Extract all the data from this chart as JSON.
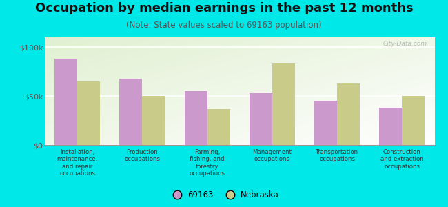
{
  "title": "Occupation by median earnings in the past 12 months",
  "subtitle": "(Note: State values scaled to 69163 population)",
  "background_color": "#00e8e8",
  "categories": [
    "Installation,\nmaintenance,\nand repair\noccupations",
    "Production\noccupations",
    "Farming,\nfishing, and\nforestry\noccupations",
    "Management\noccupations",
    "Transportation\noccupations",
    "Construction\nand extraction\noccupations"
  ],
  "values_69163": [
    88000,
    68000,
    55000,
    53000,
    45000,
    38000
  ],
  "values_nebraska": [
    65000,
    50000,
    37000,
    83000,
    63000,
    50000
  ],
  "color_69163": "#cc99cc",
  "color_nebraska": "#c8cc88",
  "legend_69163": "69163",
  "legend_nebraska": "Nebraska",
  "ylim": [
    0,
    110000
  ],
  "yticks": [
    0,
    50000,
    100000
  ],
  "ytick_labels": [
    "$0",
    "$50k",
    "$100k"
  ],
  "bar_width": 0.35,
  "title_fontsize": 13,
  "subtitle_fontsize": 8.5,
  "watermark": "City-Data.com"
}
